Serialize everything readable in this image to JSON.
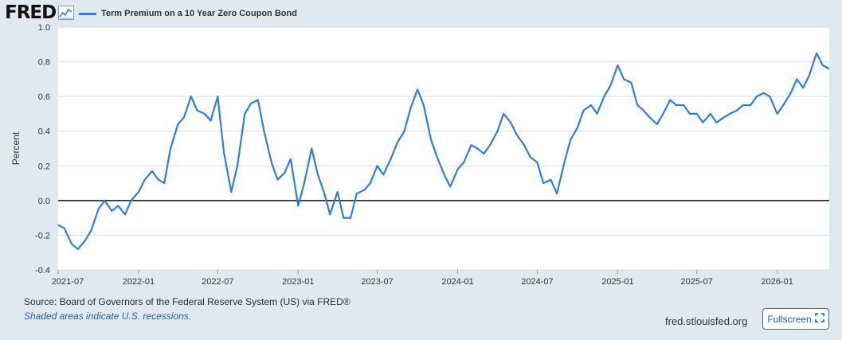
{
  "header": {
    "logo_text": "FRED",
    "logo_icon": "trend-line-icon"
  },
  "legend": {
    "series_label": "Term Premium on a 10 Year Zero Coupon Bond",
    "color": "#2c7fe2"
  },
  "footer": {
    "source": "Source: Board of Governors of the Federal Reserve System (US) via FRED®",
    "recession_note": "Shaded areas indicate U.S. recessions.",
    "site": "fred.stlouisfed.org",
    "fullscreen_label": "Fullscreen",
    "fullscreen_icon": "expand-icon"
  },
  "colors": {
    "page_background": "#e1e9f0",
    "plot_background": "#ffffff",
    "series": "#2c7fe2",
    "zero_line": "#111111",
    "grid": "#d6dde4"
  },
  "chart_data": {
    "type": "line",
    "ylabel": "Percent",
    "ylim": [
      -0.4,
      1.0
    ],
    "y_ticks": [
      "1.0",
      "0.8",
      "0.6",
      "0.4",
      "0.2",
      "0.0",
      "-0.2",
      "-0.4"
    ],
    "y_tick_values": [
      1.0,
      0.8,
      0.6,
      0.4,
      0.2,
      0.0,
      -0.2,
      -0.4
    ],
    "x_ticks": [
      "2021-07",
      "2022-01",
      "2022-07",
      "2023-01",
      "2023-07",
      "2024-01",
      "2024-07",
      "2025-01",
      "2025-07",
      "2026-01"
    ],
    "xlim": [
      "2021-07-01",
      "2026-04-30"
    ],
    "grid": "horizontal",
    "reference_line": 0.0,
    "series": [
      {
        "name": "Term Premium on a 10 Year Zero Coupon Bond",
        "x": [
          "2021-07-01",
          "2021-07-15",
          "2021-08-01",
          "2021-08-15",
          "2021-09-01",
          "2021-09-15",
          "2021-10-01",
          "2021-10-15",
          "2021-11-01",
          "2021-11-15",
          "2021-12-01",
          "2021-12-15",
          "2022-01-01",
          "2022-01-15",
          "2022-02-01",
          "2022-02-15",
          "2022-03-01",
          "2022-03-15",
          "2022-04-01",
          "2022-04-15",
          "2022-05-01",
          "2022-05-15",
          "2022-06-01",
          "2022-06-15",
          "2022-07-01",
          "2022-07-15",
          "2022-08-01",
          "2022-08-15",
          "2022-09-01",
          "2022-09-15",
          "2022-10-01",
          "2022-10-15",
          "2022-11-01",
          "2022-11-15",
          "2022-12-01",
          "2022-12-15",
          "2023-01-01",
          "2023-01-15",
          "2023-02-01",
          "2023-02-15",
          "2023-03-01",
          "2023-03-15",
          "2023-04-01",
          "2023-04-15",
          "2023-05-01",
          "2023-05-15",
          "2023-06-01",
          "2023-06-15",
          "2023-07-01",
          "2023-07-15",
          "2023-08-01",
          "2023-08-15",
          "2023-09-01",
          "2023-09-15",
          "2023-10-01",
          "2023-10-15",
          "2023-11-01",
          "2023-11-15",
          "2023-12-01",
          "2023-12-15",
          "2024-01-01",
          "2024-01-15",
          "2024-02-01",
          "2024-02-15",
          "2024-03-01",
          "2024-03-15",
          "2024-04-01",
          "2024-04-15",
          "2024-05-01",
          "2024-05-15",
          "2024-06-01",
          "2024-06-15",
          "2024-07-01",
          "2024-07-15",
          "2024-08-01",
          "2024-08-15",
          "2024-09-01",
          "2024-09-15",
          "2024-10-01",
          "2024-10-15",
          "2024-11-01",
          "2024-11-15",
          "2024-12-01",
          "2024-12-15",
          "2025-01-01",
          "2025-01-15",
          "2025-02-01",
          "2025-02-15",
          "2025-03-01",
          "2025-03-15",
          "2025-04-01",
          "2025-04-15",
          "2025-05-01",
          "2025-05-15",
          "2025-06-01",
          "2025-06-15",
          "2025-07-01",
          "2025-07-15",
          "2025-08-01",
          "2025-08-15",
          "2025-09-01",
          "2025-09-15",
          "2025-10-01",
          "2025-10-15",
          "2025-11-01",
          "2025-11-15",
          "2025-12-01",
          "2025-12-15",
          "2026-01-01",
          "2026-01-15",
          "2026-02-01",
          "2026-02-15",
          "2026-03-01",
          "2026-03-15",
          "2026-04-01",
          "2026-04-15",
          "2026-04-30"
        ],
        "values": [
          -0.14,
          -0.16,
          -0.25,
          -0.28,
          -0.23,
          -0.17,
          -0.05,
          0.0,
          -0.06,
          -0.03,
          -0.08,
          0.0,
          0.05,
          0.12,
          0.17,
          0.12,
          0.1,
          0.3,
          0.44,
          0.48,
          0.6,
          0.52,
          0.5,
          0.46,
          0.6,
          0.28,
          0.05,
          0.2,
          0.5,
          0.56,
          0.58,
          0.4,
          0.22,
          0.12,
          0.16,
          0.24,
          -0.03,
          0.1,
          0.3,
          0.15,
          0.05,
          -0.08,
          0.05,
          -0.1,
          -0.1,
          0.04,
          0.06,
          0.1,
          0.2,
          0.15,
          0.24,
          0.33,
          0.4,
          0.53,
          0.64,
          0.55,
          0.35,
          0.25,
          0.15,
          0.08,
          0.18,
          0.22,
          0.32,
          0.3,
          0.27,
          0.32,
          0.4,
          0.5,
          0.45,
          0.38,
          0.32,
          0.25,
          0.22,
          0.1,
          0.12,
          0.04,
          0.22,
          0.35,
          0.42,
          0.52,
          0.55,
          0.5,
          0.6,
          0.66,
          0.78,
          0.7,
          0.68,
          0.55,
          0.52,
          0.48,
          0.44,
          0.5,
          0.58,
          0.55,
          0.55,
          0.5,
          0.5,
          0.45,
          0.5,
          0.45,
          0.48,
          0.5,
          0.52,
          0.55,
          0.55,
          0.6,
          0.62,
          0.6,
          0.5,
          0.55,
          0.62,
          0.7,
          0.65,
          0.72,
          0.85,
          0.78,
          0.76
        ]
      }
    ]
  }
}
